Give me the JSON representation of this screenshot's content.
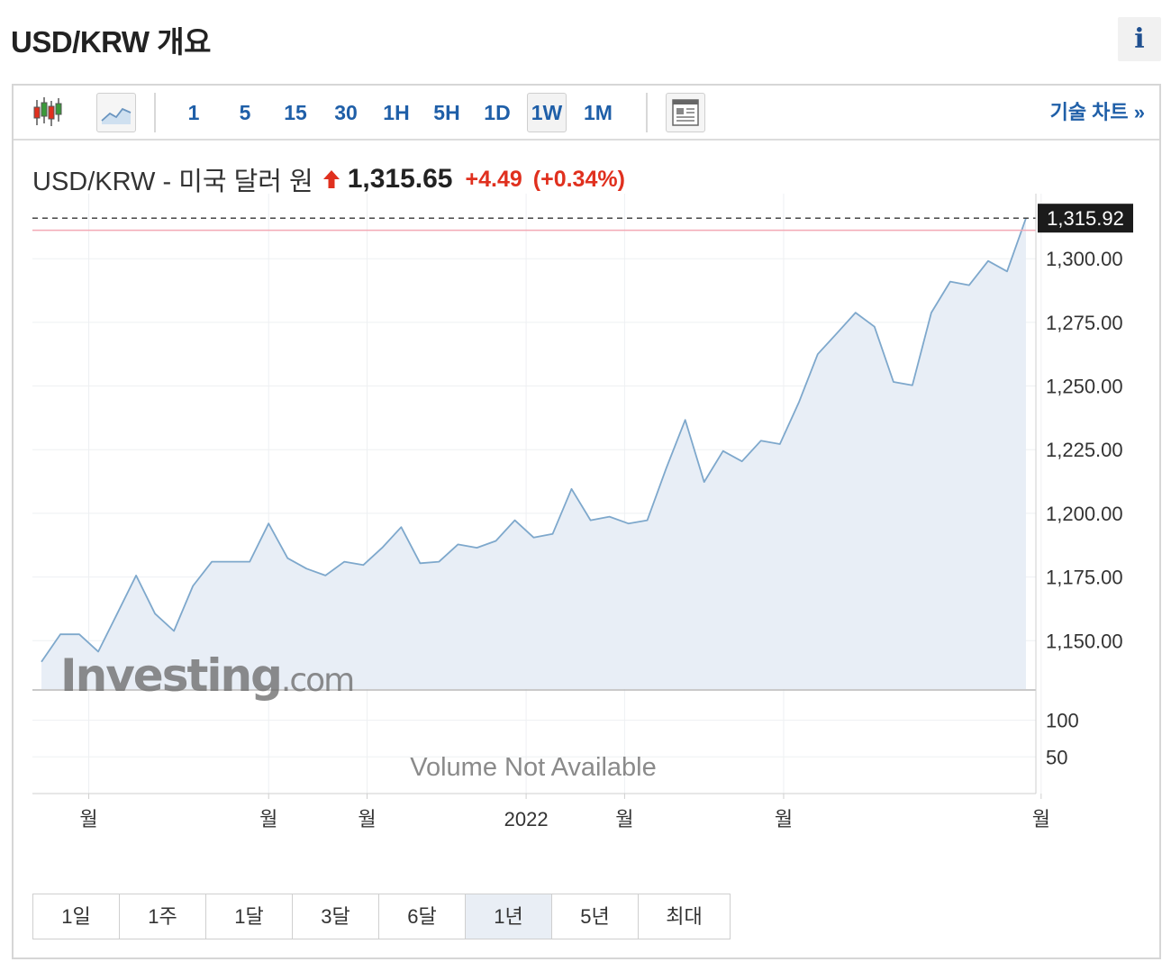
{
  "header": {
    "title": "USD/KRW 개요",
    "info_label": "i"
  },
  "toolbar": {
    "timeframes": [
      "1",
      "5",
      "15",
      "30",
      "1H",
      "5H",
      "1D",
      "1W",
      "1M"
    ],
    "active_timeframe": "1W",
    "tech_chart_label": "기술 차트 »"
  },
  "quote": {
    "name": "USD/KRW - 미국 달러 원",
    "price": "1,315.65",
    "change": "+4.49",
    "change_pct": "(+0.34%)",
    "direction": "up",
    "up_color": "#e0301e"
  },
  "watermark": {
    "brand": "Investing",
    "suffix": ".com"
  },
  "volume_message": "Volume Not Available",
  "range_buttons": [
    "1일",
    "1주",
    "1달",
    "3달",
    "6달",
    "1년",
    "5년",
    "최대"
  ],
  "active_range": "1년",
  "chart_data": {
    "type": "area",
    "title": "",
    "xlabel": "",
    "ylabel": "",
    "ylim": [
      1131,
      1322
    ],
    "y_ticks": [
      1150,
      1175,
      1200,
      1225,
      1250,
      1275,
      1300
    ],
    "y_tick_labels": [
      "1,150.00",
      "1,175.00",
      "1,200.00",
      "1,225.00",
      "1,250.00",
      "1,275.00",
      "1,300.00"
    ],
    "last_value": 1315.92,
    "last_value_label": "1,315.92",
    "previous_close": 1311.16,
    "volume_ylim": [
      0,
      140
    ],
    "volume_ticks": [
      100,
      50
    ],
    "x_tick_labels": [
      "월",
      "월",
      "월",
      "2022",
      "월",
      "월",
      "월"
    ],
    "x_tick_positions": [
      2.5,
      12,
      17.2,
      25.6,
      30.8,
      39.2,
      52.8
    ],
    "line_color": "#7ea8cc",
    "fill_color": "#e8eef6",
    "values": [
      1141.7,
      1152.5,
      1152.5,
      1145.7,
      1160.6,
      1175.6,
      1160.6,
      1153.8,
      1171.5,
      1181.0,
      1181.0,
      1181.0,
      1196.0,
      1182.4,
      1178.3,
      1175.6,
      1181.0,
      1179.7,
      1186.5,
      1194.6,
      1180.4,
      1181.0,
      1187.8,
      1186.5,
      1189.2,
      1197.3,
      1190.5,
      1191.9,
      1209.6,
      1197.3,
      1198.7,
      1196.0,
      1197.3,
      1217.7,
      1236.7,
      1212.3,
      1224.5,
      1220.4,
      1228.5,
      1227.2,
      1243.5,
      1262.5,
      1270.6,
      1278.8,
      1273.3,
      1251.6,
      1250.3,
      1278.8,
      1291.0,
      1289.6,
      1299.1,
      1295.0,
      1315.92
    ]
  }
}
